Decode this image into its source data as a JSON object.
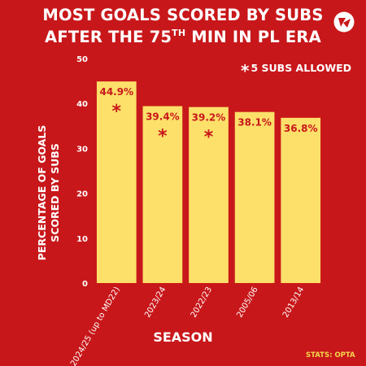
{
  "title": {
    "line1": "MOST GOALS SCORED BY SUBS",
    "line2_pre": "AFTER THE 75",
    "line2_sup": "TH",
    "line2_post": " MIN IN PL ERA"
  },
  "note": {
    "marker": "*",
    "text": "5 SUBS ALLOWED"
  },
  "credit": "STATS: OPTA",
  "colors": {
    "background": "#c8171a",
    "bar": "#fce06a",
    "bar_label": "#c8171a",
    "text": "#ffffff",
    "credit": "#f3d64c"
  },
  "chart_data": {
    "type": "bar",
    "title": "MOST GOALS SCORED BY SUBS AFTER THE 75TH MIN IN PL ERA",
    "xlabel": "SEASON",
    "ylabel_lines": [
      "PERCENTAGE OF GOALS",
      "SCORED BY SUBS"
    ],
    "categories": [
      "2024/25 (up to MD22)",
      "2023/24",
      "2022/23",
      "2005/06",
      "2013/14"
    ],
    "values": [
      44.9,
      39.4,
      39.2,
      38.1,
      36.8
    ],
    "value_labels": [
      "44.9%",
      "39.4%",
      "39.2%",
      "38.1%",
      "36.8%"
    ],
    "five_subs_allowed": [
      true,
      true,
      true,
      false,
      false
    ],
    "ylim": [
      0,
      50
    ],
    "yticks": [
      0,
      10,
      20,
      30,
      40,
      50
    ],
    "grid": false,
    "legend": "none"
  }
}
